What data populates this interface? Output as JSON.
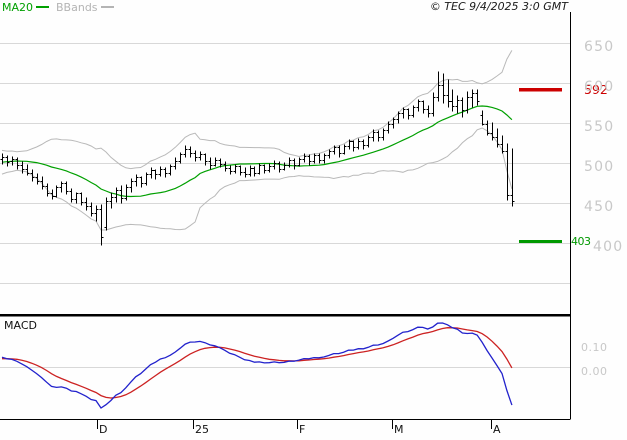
{
  "ui": {
    "legend": {
      "ma20_label": "MA20",
      "bbands_label": "BBands"
    },
    "copyright": "© TEC 9/4/2025 3:0 GMT",
    "macd_label": "MACD"
  },
  "colors": {
    "grid": "#d8d8d8",
    "bars": "#000000",
    "ma": "#00a000",
    "bands": "#b9b9b9",
    "macd_line": "#2222cc",
    "macd_signal": "#cc2222",
    "resistance": "#cc0000",
    "support": "#009900",
    "axis_text": "#c8c8c8",
    "border": "#000000"
  },
  "chart_data": {
    "type": "ohlc",
    "title": "",
    "price_axis": {
      "tick_labels": [
        "650",
        "600",
        "550",
        "500",
        "450",
        "400"
      ],
      "tick_values": [
        650,
        600,
        550,
        500,
        450,
        400
      ],
      "grid_values": [
        650,
        600,
        550,
        500,
        450,
        400,
        350
      ]
    },
    "x_axis": {
      "ticks": [
        {
          "label": "D",
          "bar": 19.2
        },
        {
          "label": "25",
          "bar": 38.6
        },
        {
          "label": "F",
          "bar": 59.6
        },
        {
          "label": "M",
          "bar": 78.8
        },
        {
          "label": "A",
          "bar": 98.8
        }
      ]
    },
    "levels": {
      "resistance": {
        "value": 592,
        "label": "592"
      },
      "support": {
        "value": 403,
        "label": "403"
      }
    },
    "macd_axis_labels": [
      "0.10",
      "0.00"
    ],
    "indicators": {
      "ma": {
        "period": 20
      },
      "bbands": {
        "period": 20,
        "stdev": 2.2
      },
      "macd": {
        "fast": 12,
        "slow": 26,
        "signal": 9
      }
    },
    "leadin_closes": [
      492,
      488,
      494,
      490,
      496,
      492,
      498,
      495,
      501,
      497,
      503,
      500,
      506,
      503,
      508,
      505,
      510,
      507,
      511,
      508
    ],
    "bars": [
      [
        505,
        512,
        499,
        507
      ],
      [
        507,
        510,
        496,
        501
      ],
      [
        503,
        509,
        497,
        505
      ],
      [
        505,
        508,
        492,
        497
      ],
      [
        498,
        503,
        488,
        492
      ],
      [
        492,
        499,
        485,
        488
      ],
      [
        488,
        492,
        478,
        482
      ],
      [
        483,
        488,
        474,
        478
      ],
      [
        478,
        484,
        467,
        471
      ],
      [
        471,
        475,
        459,
        463
      ],
      [
        463,
        468,
        455,
        459
      ],
      [
        459,
        472,
        457,
        470
      ],
      [
        470,
        477,
        464,
        475
      ],
      [
        475,
        477,
        461,
        465
      ],
      [
        465,
        469,
        451,
        455
      ],
      [
        455,
        464,
        450,
        462
      ],
      [
        462,
        464,
        447,
        451
      ],
      [
        451,
        457,
        441,
        446
      ],
      [
        446,
        451,
        434,
        438
      ],
      [
        438,
        447,
        428,
        443
      ],
      [
        443,
        449,
        398,
        408
      ],
      [
        420,
        458,
        416,
        452
      ],
      [
        452,
        464,
        444,
        458
      ],
      [
        458,
        470,
        451,
        466
      ],
      [
        466,
        472,
        450,
        456
      ],
      [
        456,
        474,
        454,
        470
      ],
      [
        470,
        481,
        464,
        477
      ],
      [
        477,
        486,
        471,
        482
      ],
      [
        482,
        484,
        470,
        475
      ],
      [
        475,
        489,
        473,
        486
      ],
      [
        486,
        495,
        481,
        491
      ],
      [
        491,
        493,
        480,
        486
      ],
      [
        486,
        496,
        484,
        493
      ],
      [
        493,
        495,
        482,
        487
      ],
      [
        487,
        499,
        485,
        496
      ],
      [
        496,
        507,
        493,
        503
      ],
      [
        503,
        514,
        500,
        511
      ],
      [
        511,
        523,
        507,
        518
      ],
      [
        518,
        521,
        507,
        513
      ],
      [
        513,
        516,
        502,
        507
      ],
      [
        507,
        515,
        504,
        511
      ],
      [
        511,
        513,
        498,
        503
      ],
      [
        503,
        507,
        493,
        498
      ],
      [
        498,
        507,
        496,
        504
      ],
      [
        504,
        506,
        495,
        499
      ],
      [
        499,
        503,
        490,
        494
      ],
      [
        494,
        498,
        486,
        490
      ],
      [
        490,
        499,
        488,
        496
      ],
      [
        496,
        498,
        485,
        489
      ],
      [
        489,
        495,
        482,
        486
      ],
      [
        486,
        497,
        484,
        494
      ],
      [
        494,
        496,
        484,
        488
      ],
      [
        488,
        500,
        486,
        497
      ],
      [
        497,
        499,
        487,
        491
      ],
      [
        491,
        500,
        489,
        496
      ],
      [
        496,
        504,
        492,
        500
      ],
      [
        500,
        502,
        489,
        493
      ],
      [
        493,
        501,
        491,
        498
      ],
      [
        498,
        507,
        495,
        504
      ],
      [
        504,
        506,
        493,
        498
      ],
      [
        498,
        508,
        496,
        505
      ],
      [
        505,
        512,
        501,
        509
      ],
      [
        509,
        511,
        498,
        502
      ],
      [
        502,
        513,
        500,
        510
      ],
      [
        510,
        512,
        500,
        504
      ],
      [
        504,
        513,
        500,
        510
      ],
      [
        510,
        518,
        506,
        515
      ],
      [
        515,
        523,
        511,
        520
      ],
      [
        520,
        522,
        508,
        513
      ],
      [
        513,
        524,
        511,
        521
      ],
      [
        521,
        530,
        517,
        527
      ],
      [
        527,
        529,
        515,
        520
      ],
      [
        520,
        531,
        518,
        528
      ],
      [
        528,
        530,
        518,
        523
      ],
      [
        523,
        535,
        520,
        532
      ],
      [
        532,
        542,
        528,
        539
      ],
      [
        539,
        541,
        527,
        532
      ],
      [
        532,
        544,
        529,
        541
      ],
      [
        541,
        552,
        537,
        549
      ],
      [
        549,
        558,
        544,
        555
      ],
      [
        555,
        565,
        550,
        562
      ],
      [
        562,
        570,
        556,
        567
      ],
      [
        567,
        569,
        555,
        560
      ],
      [
        560,
        573,
        557,
        570
      ],
      [
        570,
        580,
        565,
        577
      ],
      [
        577,
        579,
        563,
        568
      ],
      [
        568,
        573,
        557,
        563
      ],
      [
        563,
        589,
        559,
        583
      ],
      [
        583,
        615,
        577,
        597
      ],
      [
        597,
        612,
        575,
        585
      ],
      [
        585,
        605,
        570,
        577
      ],
      [
        577,
        592,
        565,
        571
      ],
      [
        571,
        585,
        563,
        579
      ],
      [
        579,
        583,
        557,
        566
      ],
      [
        566,
        590,
        562,
        582
      ],
      [
        582,
        592,
        570,
        588
      ],
      [
        588,
        593,
        572,
        578
      ],
      [
        560,
        566,
        547,
        549
      ],
      [
        549,
        554,
        535,
        537
      ],
      [
        537,
        551,
        529,
        532
      ],
      [
        532,
        544,
        520,
        524
      ],
      [
        524,
        535,
        512,
        515
      ],
      [
        515,
        525,
        454,
        460
      ],
      [
        460,
        519,
        446,
        452
      ]
    ]
  }
}
